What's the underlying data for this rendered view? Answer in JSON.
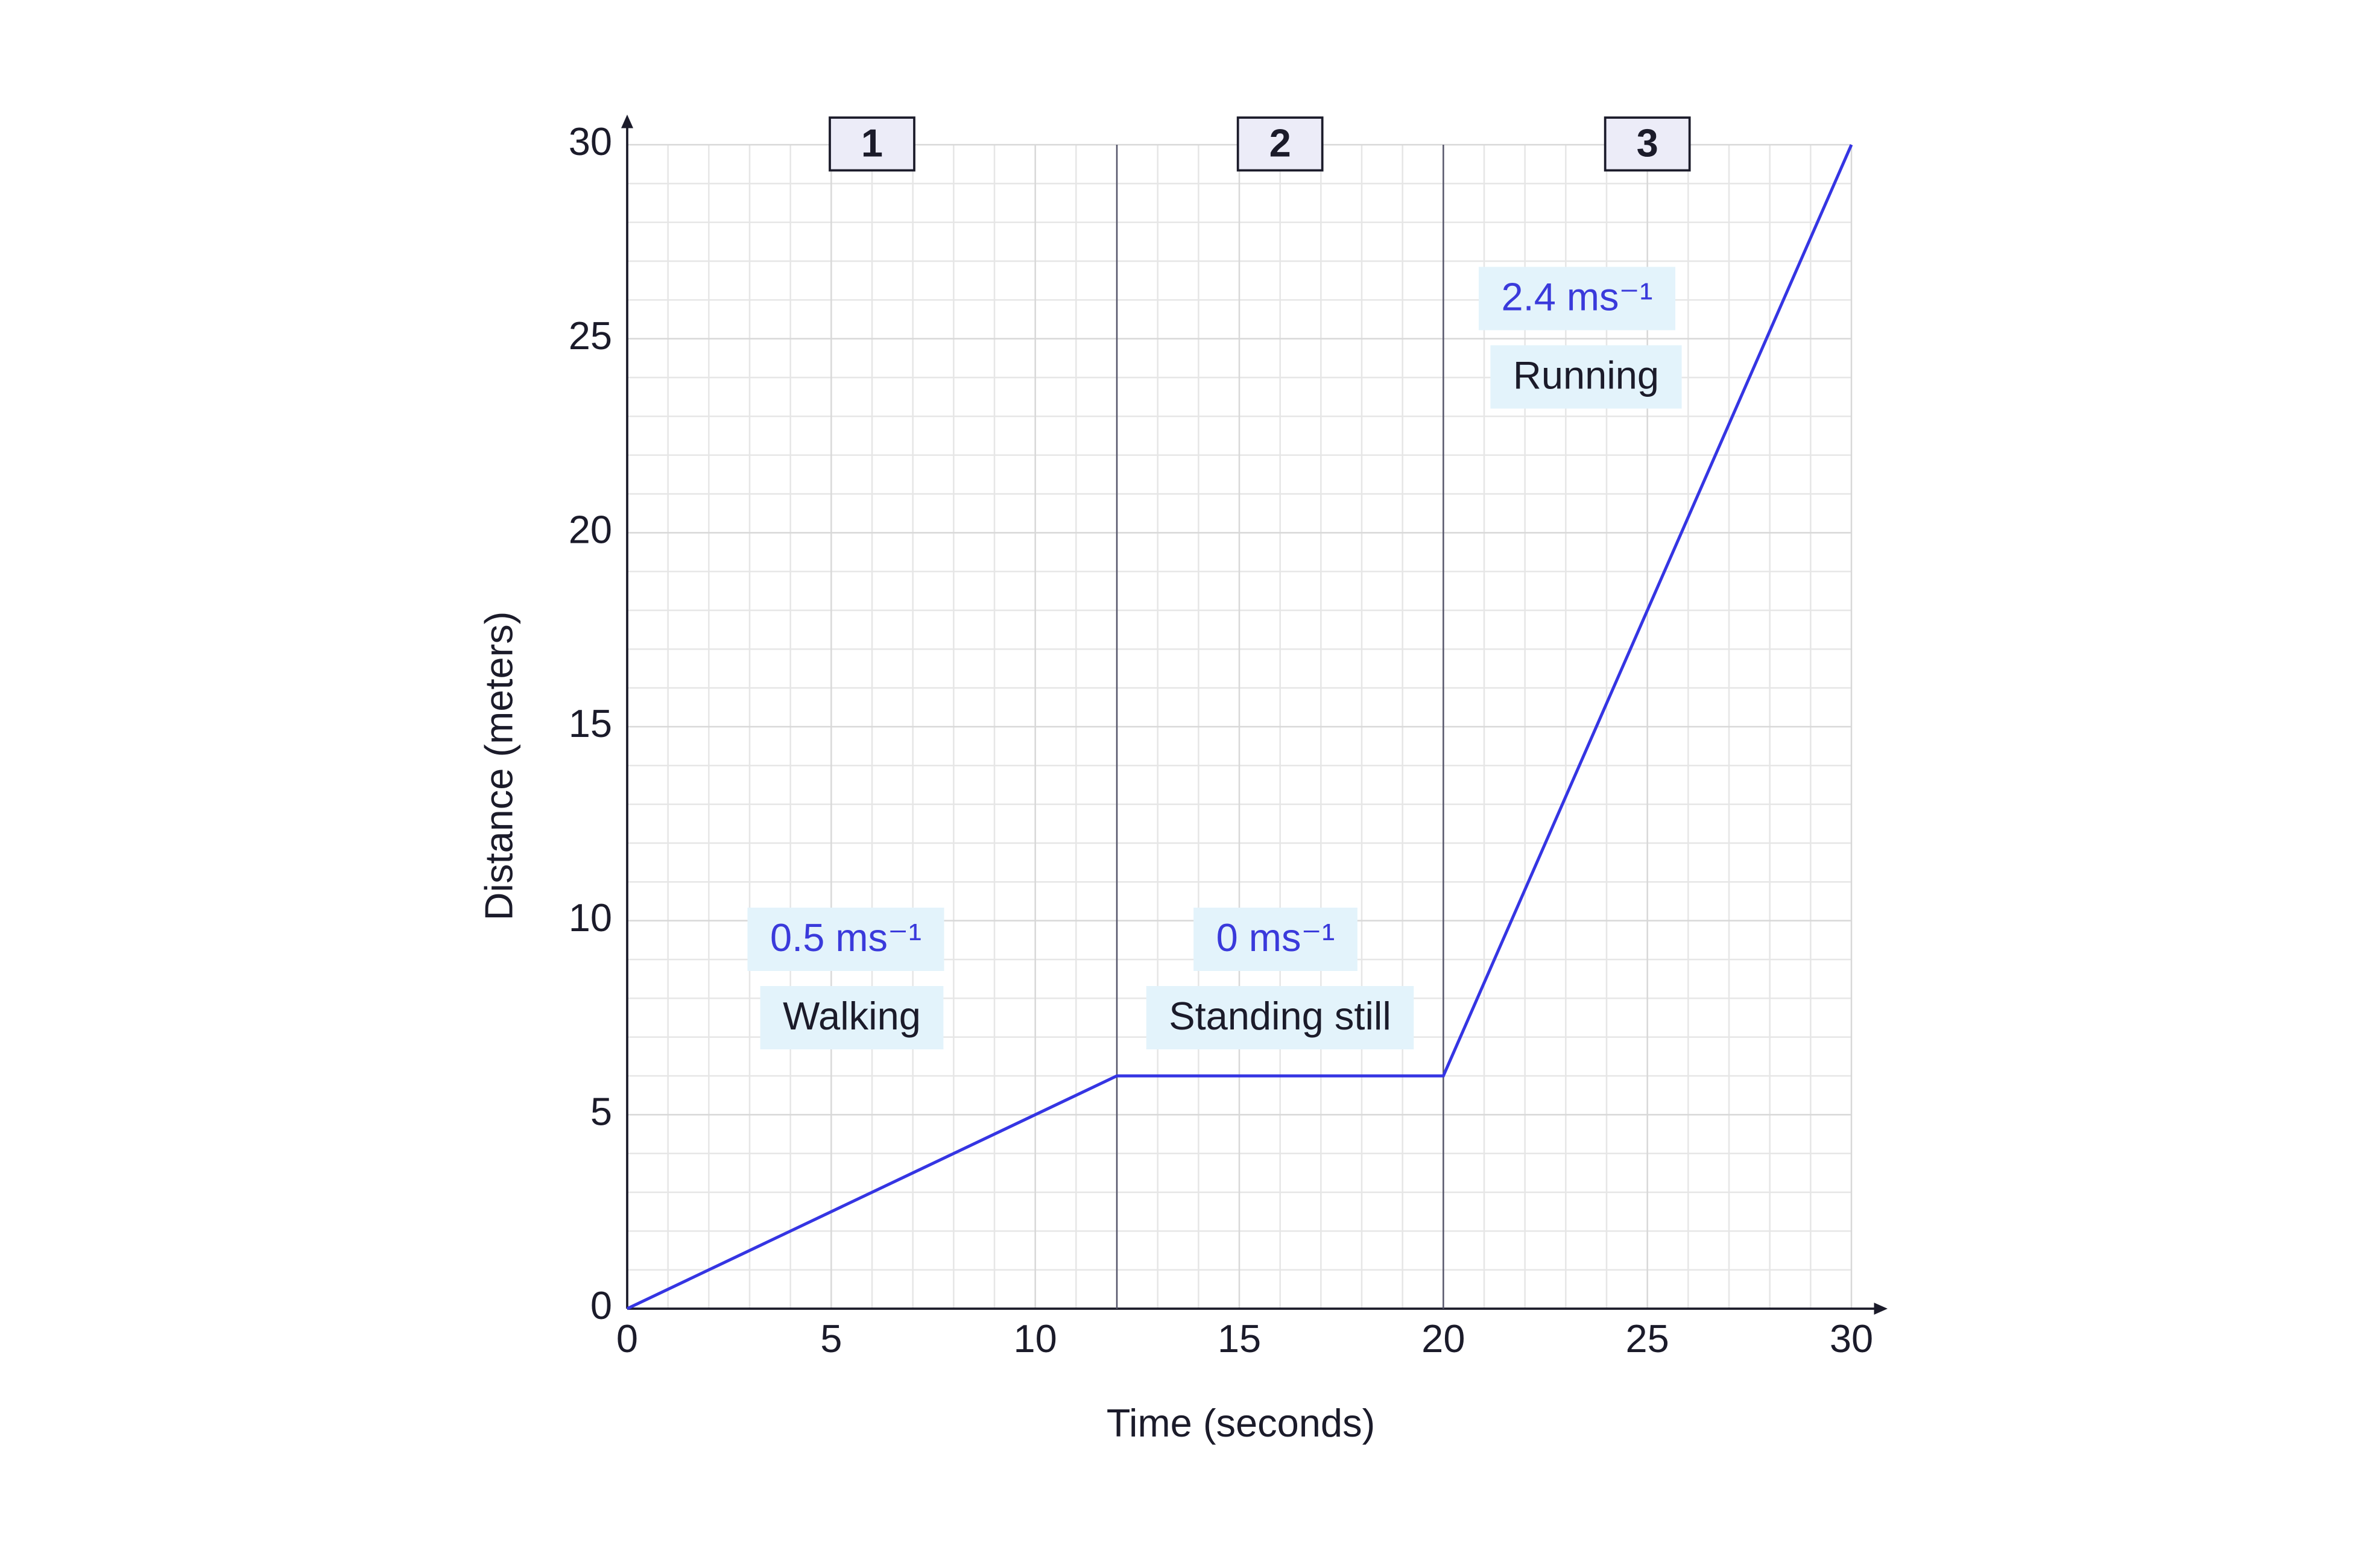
{
  "chart_data": {
    "type": "line",
    "x_label": "Time (seconds)",
    "y_label": "Distance (meters)",
    "x": [
      0,
      12,
      20,
      30
    ],
    "values": [
      0,
      6,
      6,
      30
    ],
    "color": "#3535e3",
    "xlim": [
      0,
      30
    ],
    "xticks": [
      0,
      5,
      10,
      15,
      20,
      25,
      30
    ],
    "ylim": [
      0,
      30
    ],
    "yticks": [
      0,
      5,
      10,
      15,
      20,
      25,
      30
    ],
    "grid": true,
    "phases": [
      {
        "number": "1",
        "speed": "0.5 ms⁻¹",
        "label": "Walking"
      },
      {
        "number": "2",
        "speed": "0 ms⁻¹",
        "label": "Standing still"
      },
      {
        "number": "3",
        "speed": "2.4 ms⁻¹",
        "label": "Running"
      }
    ]
  }
}
